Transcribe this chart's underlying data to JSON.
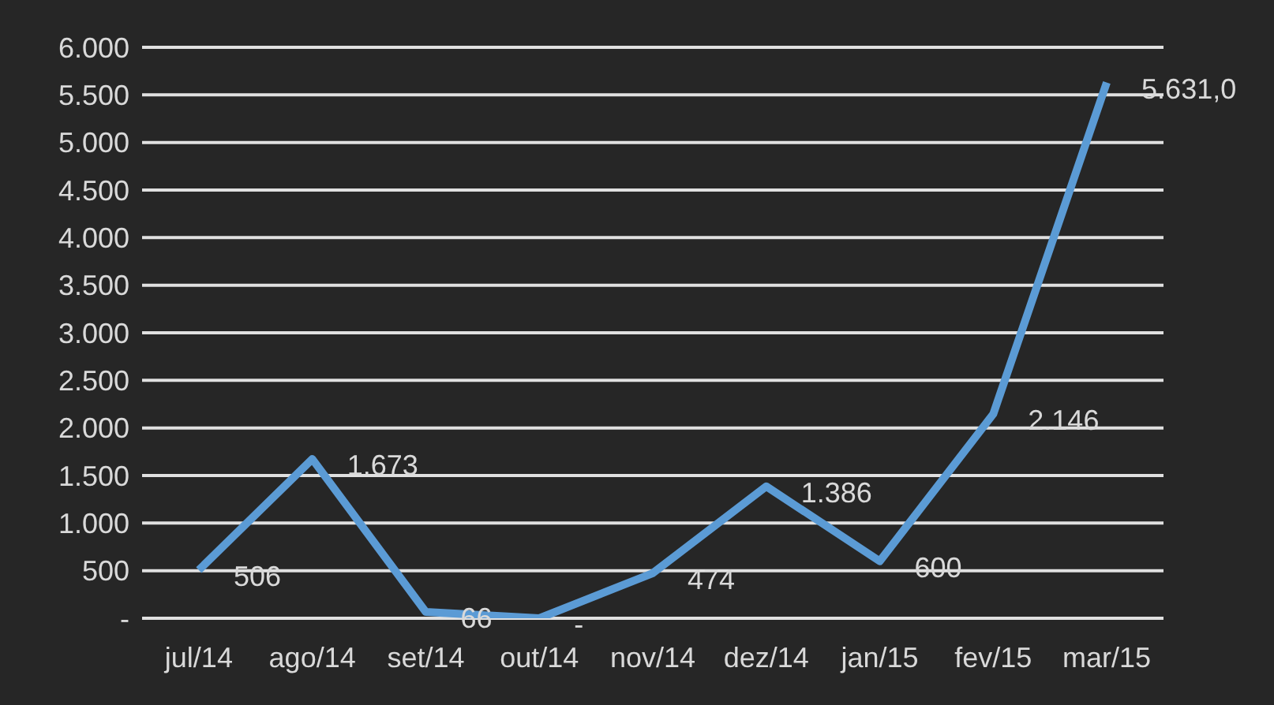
{
  "chart_data": {
    "type": "line",
    "categories": [
      "jul/14",
      "ago/14",
      "set/14",
      "out/14",
      "nov/14",
      "dez/14",
      "jan/15",
      "fev/15",
      "mar/15"
    ],
    "series": [
      {
        "color": "#5b9bd5",
        "values": [
          506,
          1673,
          66,
          0,
          474,
          1386,
          600,
          2146,
          5631
        ],
        "value_labels": [
          "506",
          "1.673",
          "66",
          "-",
          "474",
          "1.386",
          "600",
          "2.146",
          "5.631,0"
        ]
      }
    ],
    "ylim": [
      0,
      6000
    ],
    "yticks": [
      {
        "value": 0,
        "label": "-"
      },
      {
        "value": 500,
        "label": "500"
      },
      {
        "value": 1000,
        "label": "1.000"
      },
      {
        "value": 1500,
        "label": "1.500"
      },
      {
        "value": 2000,
        "label": "2.000"
      },
      {
        "value": 2500,
        "label": "2.500"
      },
      {
        "value": 3000,
        "label": "3.000"
      },
      {
        "value": 3500,
        "label": "3.500"
      },
      {
        "value": 4000,
        "label": "4.000"
      },
      {
        "value": 4500,
        "label": "4.500"
      },
      {
        "value": 5000,
        "label": "5.000"
      },
      {
        "value": 5500,
        "label": "5.500"
      },
      {
        "value": 6000,
        "label": "6.000"
      }
    ],
    "grid": "y",
    "legend": false,
    "marker": "none",
    "line_style": "solid"
  }
}
